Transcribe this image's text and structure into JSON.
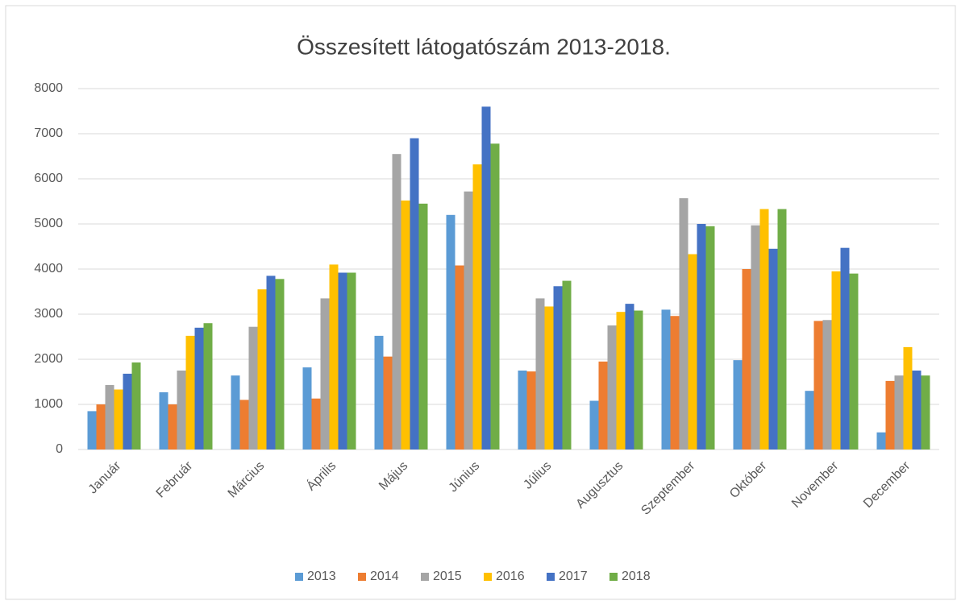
{
  "chart_data": {
    "type": "bar",
    "title": "Összesített látogatószám 2013-2018.",
    "categories": [
      "Január",
      "Február",
      "Március",
      "Április",
      "Május",
      "Június",
      "Július",
      "Augusztus",
      "Szeptember",
      "Október",
      "November",
      "December"
    ],
    "series": [
      {
        "name": "2013",
        "color": "#5b9bd5",
        "values": [
          850,
          1270,
          1640,
          1820,
          2520,
          5200,
          1750,
          1080,
          3100,
          1980,
          1300,
          380
        ]
      },
      {
        "name": "2014",
        "color": "#ed7d31",
        "values": [
          1000,
          1000,
          1100,
          1130,
          2060,
          4080,
          1730,
          1950,
          2960,
          4000,
          2850,
          1520
        ]
      },
      {
        "name": "2015",
        "color": "#a5a5a5",
        "values": [
          1430,
          1750,
          2720,
          3350,
          6550,
          5720,
          3350,
          2750,
          5570,
          4970,
          2870,
          1640
        ]
      },
      {
        "name": "2016",
        "color": "#ffc000",
        "values": [
          1330,
          2520,
          3550,
          4100,
          5520,
          6320,
          3170,
          3050,
          4330,
          5330,
          3950,
          2270
        ]
      },
      {
        "name": "2017",
        "color": "#4472c4",
        "values": [
          1680,
          2700,
          3850,
          3920,
          6900,
          7600,
          3620,
          3230,
          5000,
          4450,
          4470,
          1750
        ]
      },
      {
        "name": "2018",
        "color": "#70ad47",
        "values": [
          1930,
          2800,
          3780,
          3920,
          5450,
          6780,
          3740,
          3080,
          4950,
          5330,
          3900,
          1640
        ]
      }
    ],
    "ylim": [
      0,
      8000
    ],
    "yticks": [
      0,
      1000,
      2000,
      3000,
      4000,
      5000,
      6000,
      7000,
      8000
    ],
    "grid": true,
    "legend": "bottom"
  }
}
